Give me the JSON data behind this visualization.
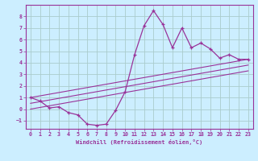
{
  "xlabel": "Windchill (Refroidissement éolien,°C)",
  "background_color": "#cceeff",
  "grid_color": "#aacccc",
  "line_color": "#993399",
  "xlim": [
    -0.5,
    23.5
  ],
  "ylim": [
    -1.7,
    9.0
  ],
  "xticks": [
    0,
    1,
    2,
    3,
    4,
    5,
    6,
    7,
    8,
    9,
    10,
    11,
    12,
    13,
    14,
    15,
    16,
    17,
    18,
    19,
    20,
    21,
    22,
    23
  ],
  "yticks": [
    -1,
    0,
    1,
    2,
    3,
    4,
    5,
    6,
    7,
    8
  ],
  "main_x": [
    0,
    1,
    2,
    3,
    4,
    5,
    6,
    7,
    8,
    9,
    10,
    11,
    12,
    13,
    14,
    15,
    16,
    17,
    18,
    19,
    20,
    21,
    22,
    23
  ],
  "main_y": [
    1.0,
    0.7,
    0.1,
    0.2,
    -0.3,
    -0.5,
    -1.3,
    -1.4,
    -1.3,
    -0.1,
    1.5,
    4.7,
    7.2,
    8.5,
    7.3,
    5.3,
    7.0,
    5.3,
    5.7,
    5.2,
    4.4,
    4.7,
    4.3,
    4.3
  ],
  "diag_lines": [
    {
      "x0": 0,
      "y0": 1.0,
      "x1": 23,
      "y1": 4.3
    },
    {
      "x0": 0,
      "y0": 0.5,
      "x1": 23,
      "y1": 3.8
    },
    {
      "x0": 0,
      "y0": 0.0,
      "x1": 23,
      "y1": 3.3
    }
  ]
}
